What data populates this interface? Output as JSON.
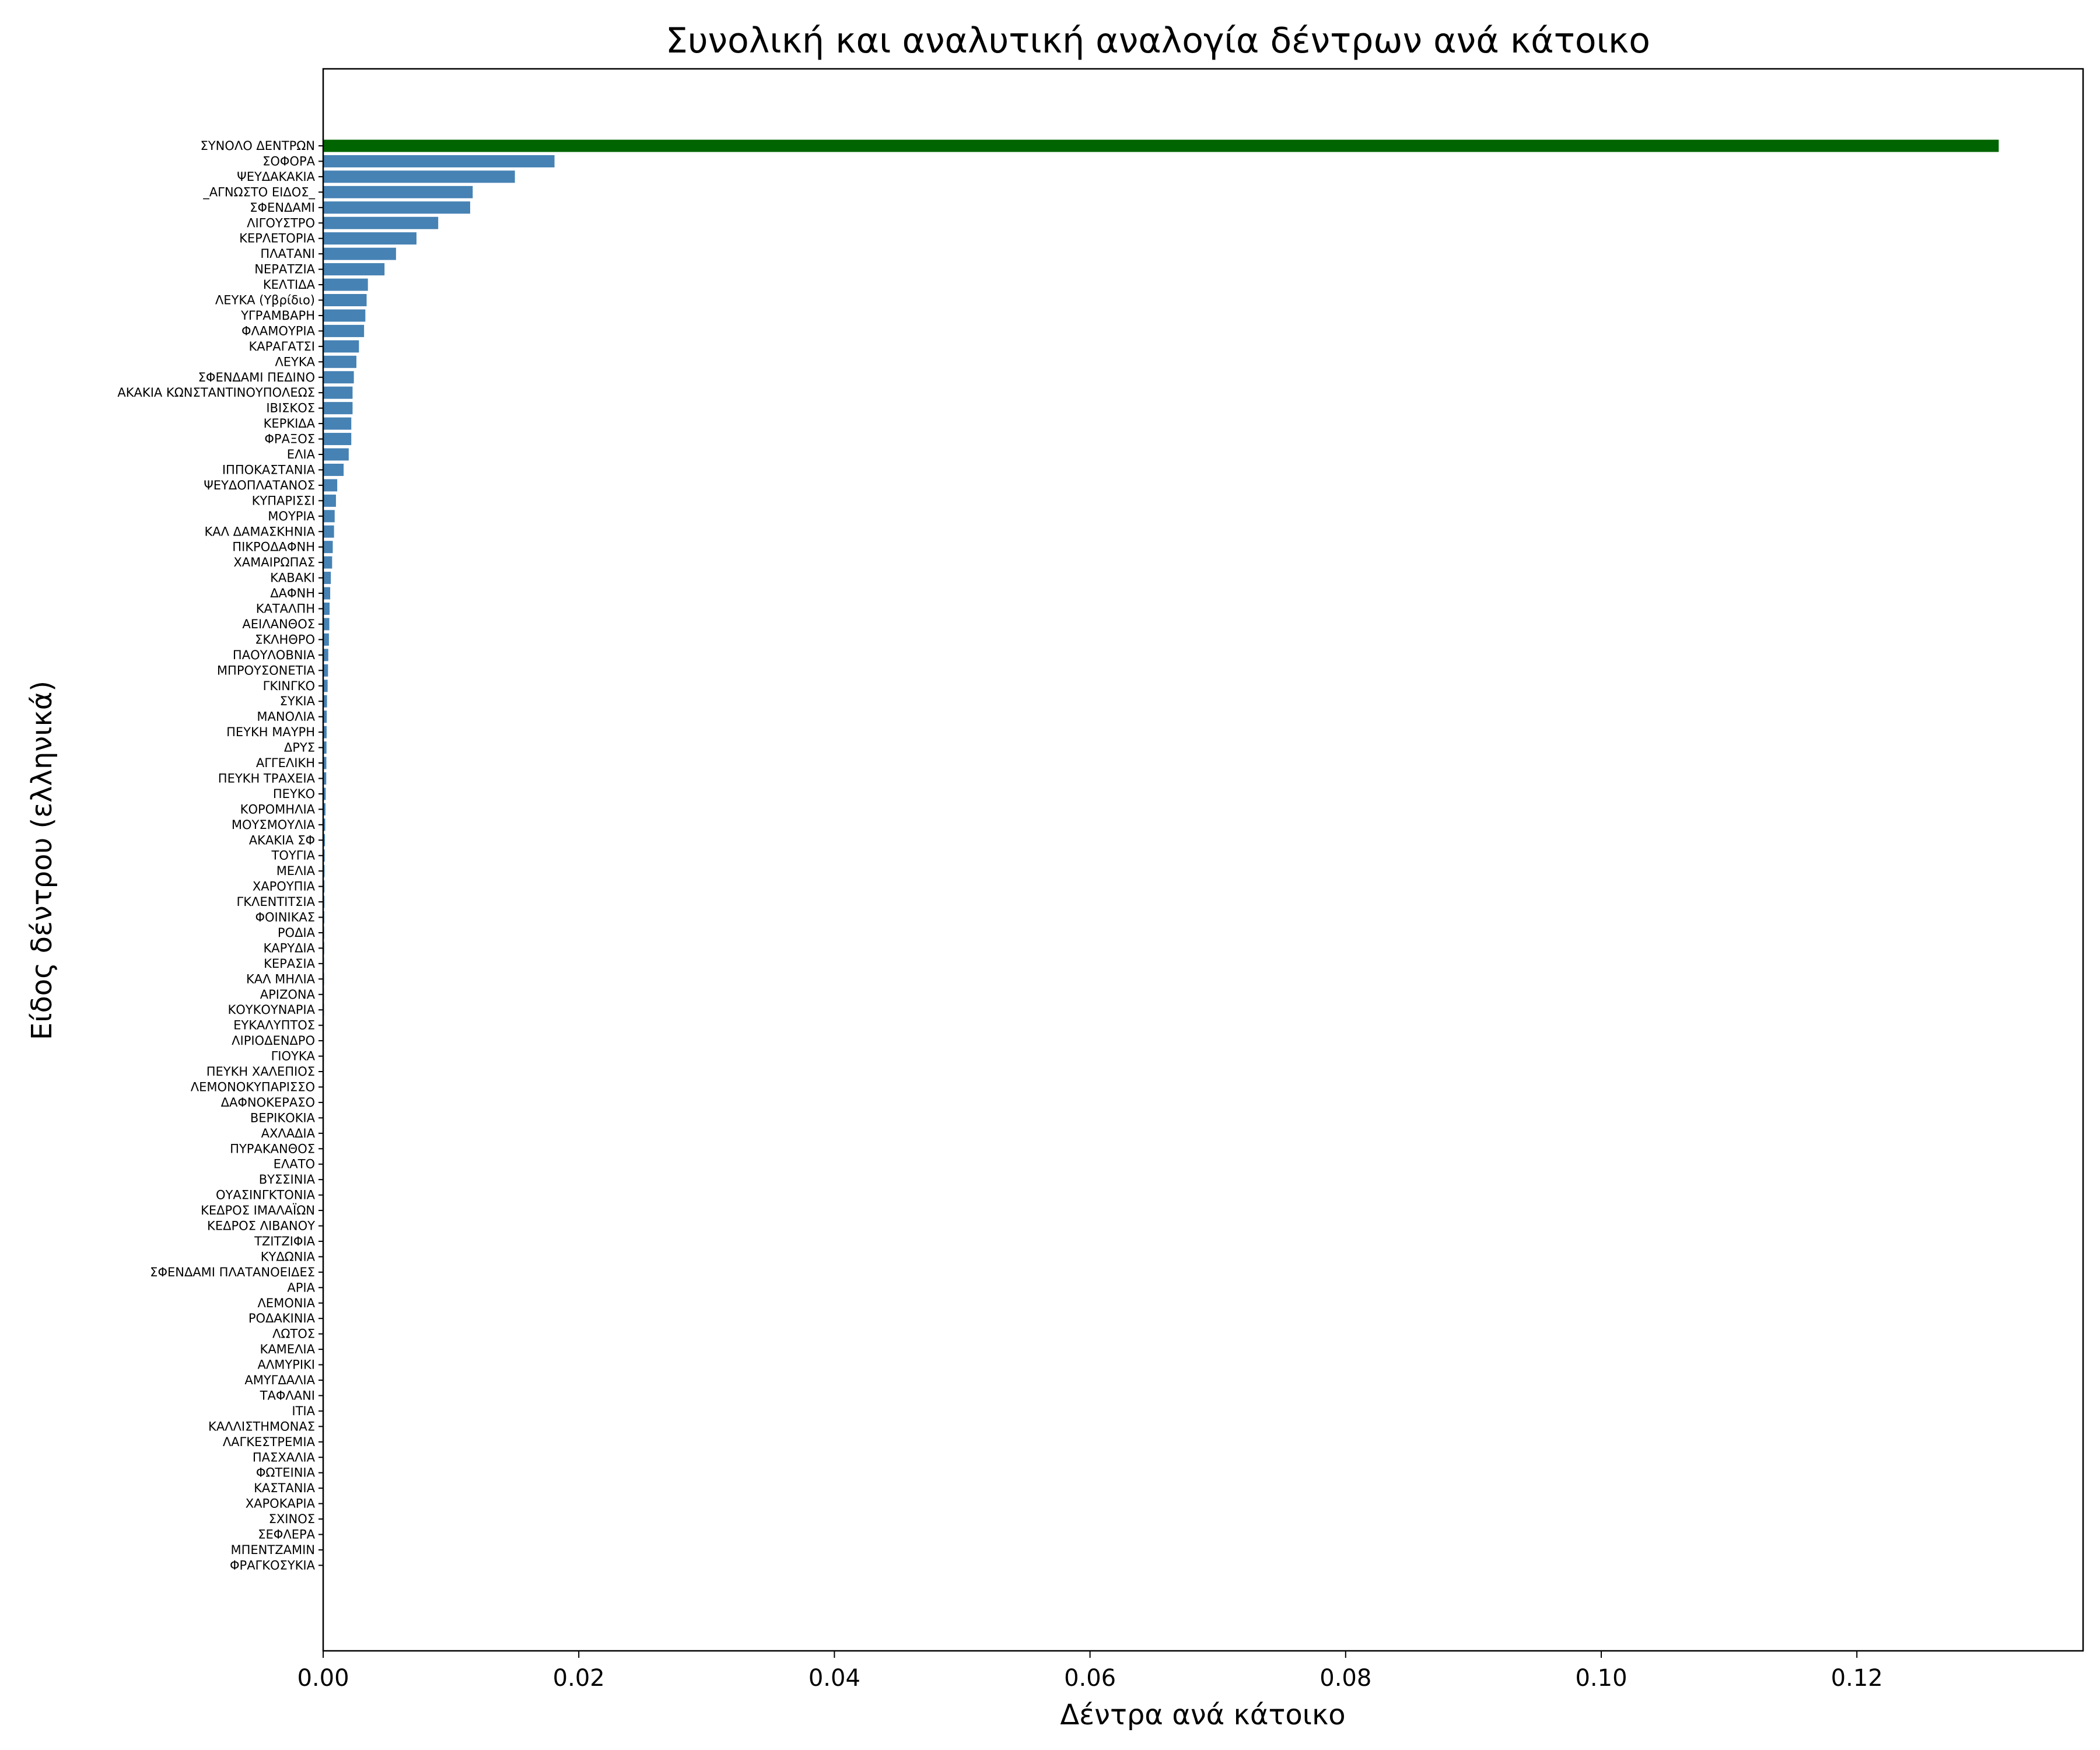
{
  "chart_data": {
    "type": "bar",
    "orientation": "horizontal",
    "title": "Συνολική και αναλυτική αναλογία δέντρων ανά κάτοικο",
    "xlabel": "Δέντρα ανά κάτοικο",
    "ylabel": "Είδος δέντρου (ελληνικά)",
    "xlim": [
      0,
      0.1377
    ],
    "xticks": [
      {
        "value": 0.0,
        "label": "0.00"
      },
      {
        "value": 0.02,
        "label": "0.02"
      },
      {
        "value": 0.04,
        "label": "0.04"
      },
      {
        "value": 0.06,
        "label": "0.06"
      },
      {
        "value": 0.08,
        "label": "0.08"
      },
      {
        "value": 0.1,
        "label": "0.10"
      },
      {
        "value": 0.12,
        "label": "0.12"
      }
    ],
    "grid": false,
    "colors": {
      "total": "#006400",
      "species": "#4682b4"
    },
    "categories": [
      "ΣΥΝΟΛΟ ΔΕΝΤΡΩΝ",
      "ΣΟΦΟΡΑ",
      "ΨΕΥΔΑΚΑΚΙΑ",
      "_ΑΓΝΩΣΤΟ ΕΙΔΟΣ_",
      "ΣΦΕΝΔΑΜΙ",
      "ΛΙΓΟΥΣΤΡΟ",
      "ΚΕΡΛΕΤΟΡΙΑ",
      "ΠΛΑΤΑΝΙ",
      "ΝΕΡΑΤΖΙΑ",
      "ΚΕΛΤΙΔΑ",
      "ΛΕΥΚΑ (Υβρίδιο)",
      "ΥΓΡΑΜΒΑΡΗ",
      "ΦΛΑΜΟΥΡΙΑ",
      "ΚΑΡΑΓΑΤΣΙ",
      "ΛΕΥΚΑ",
      "ΣΦΕΝΔΑΜΙ ΠΕΔΙΝΟ",
      "ΑΚΑΚΙΑ ΚΩΝΣΤΑΝΤΙΝΟΥΠΟΛΕΩΣ",
      "ΙΒΙΣΚΟΣ",
      "ΚΕΡΚΙΔΑ",
      "ΦΡΑΞΟΣ",
      "ΕΛΙΑ",
      "ΙΠΠΟΚΑΣΤΑΝΙΑ",
      "ΨΕΥΔΟΠΛΑΤΑΝΟΣ",
      "ΚΥΠΑΡΙΣΣΙ",
      "ΜΟΥΡΙΑ",
      "ΚΑΛ ΔΑΜΑΣΚΗΝΙΑ",
      "ΠΙΚΡΟΔΑΦΝΗ",
      "ΧΑΜΑΙΡΩΠΑΣ",
      "ΚΑΒΑΚΙ",
      "ΔΑΦΝΗ",
      "ΚΑΤΑΛΠΗ",
      "ΑΕΙΛΑΝΘΟΣ",
      "ΣΚΛΗΘΡΟ",
      "ΠΑΟΥΛΟΒΝΙΑ",
      "ΜΠΡΟΥΣΟΝΕΤΙΑ",
      "ΓΚΙΝΓΚΟ",
      "ΣΥΚΙΑ",
      "ΜΑΝΟΛΙΑ",
      "ΠΕΥΚΗ ΜΑΥΡΗ",
      "ΔΡΥΣ",
      "ΑΓΓΕΛΙΚΗ",
      "ΠΕΥΚΗ ΤΡΑΧΕΙΑ",
      "ΠΕΥΚΟ",
      "ΚΟΡΟΜΗΛΙΑ",
      "ΜΟΥΣΜΟΥΛΙΑ",
      "ΑΚΑΚΙΑ ΣΦ",
      "ΤΟΥΓΙΑ",
      "ΜΕΛΙΑ",
      "ΧΑΡΟΥΠΙΑ",
      "ΓΚΛΕΝΤΙΤΣΙΑ",
      "ΦΟΙΝΙΚΑΣ",
      "ΡΟΔΙΑ",
      "ΚΑΡΥΔΙΑ",
      "ΚΕΡΑΣΙΑ",
      "ΚΑΛ ΜΗΛΙΑ",
      "ΑΡΙΖΟΝΑ",
      "ΚΟΥΚΟΥΝΑΡΙΑ",
      "ΕΥΚΑΛΥΠΤΟΣ",
      "ΛΙΡΙΟΔΕΝΔΡΟ",
      "ΓΙΟΥΚΑ",
      "ΠΕΥΚΗ ΧΑΛΕΠΙΟΣ",
      "ΛΕΜΟΝΟΚΥΠΑΡΙΣΣΟ",
      "ΔΑΦΝΟΚΕΡΑΣΟ",
      "ΒΕΡΙΚΟΚΙΑ",
      "ΑΧΛΑΔΙΑ",
      "ΠΥΡΑΚΑΝΘΟΣ",
      "ΕΛΑΤΟ",
      "ΒΥΣΣΙΝΙΑ",
      "ΟΥΑΣΙΝΓΚΤΟΝΙΑ",
      "ΚΕΔΡΟΣ ΙΜΑΛΑΪΩΝ",
      "ΚΕΔΡΟΣ ΛΙΒΑΝΟΥ",
      "ΤΖΙΤΖΙΦΙΑ",
      "ΚΥΔΩΝΙΑ",
      "ΣΦΕΝΔΑΜΙ ΠΛΑΤΑΝΟΕΙΔΕΣ",
      "ΑΡΙΑ",
      "ΛΕΜΟΝΙΑ",
      "ΡΟΔΑΚΙΝΙΑ",
      "ΛΩΤΟΣ",
      "ΚΑΜΕΛΙΑ",
      "ΑΛΜΥΡΙΚΙ",
      "ΑΜΥΓΔΑΛΙΑ",
      "ΤΑΦΛΑΝΙ",
      "ΙΤΙΑ",
      "ΚΑΛΛΙΣΤΗΜΟΝΑΣ",
      "ΛΑΓΚΕΣΤΡΕΜΙΑ",
      "ΠΑΣΧΑΛΙΑ",
      "ΦΩΤΕΙΝΙΑ",
      "ΚΑΣΤΑΝΙΑ",
      "ΧΑΡΟΚΑΡΙΑ",
      "ΣΧΙΝΟΣ",
      "ΣΕΦΛΕΡΑ",
      "ΜΠΕΝΤΖΑΜΙΝ",
      "ΦΡΑΓΚΟΣΥΚΙΑ"
    ],
    "values": [
      0.1311,
      0.0181,
      0.015,
      0.0117,
      0.0115,
      0.009,
      0.0073,
      0.0057,
      0.0048,
      0.0035,
      0.0034,
      0.0033,
      0.0032,
      0.0028,
      0.0026,
      0.0024,
      0.0023,
      0.0023,
      0.0022,
      0.0022,
      0.002,
      0.0016,
      0.0011,
      0.001,
      0.0009,
      0.00085,
      0.00075,
      0.0007,
      0.0006,
      0.00055,
      0.0005,
      0.00048,
      0.00045,
      0.0004,
      0.00038,
      0.00035,
      0.0003,
      0.00028,
      0.00027,
      0.00026,
      0.00025,
      0.00024,
      0.0002,
      0.00018,
      0.00016,
      0.00014,
      0.00012,
      0.00011,
      0.0001,
      0.0001,
      9e-05,
      8e-05,
      8e-05,
      7e-05,
      7e-05,
      6e-05,
      6e-05,
      5e-05,
      5e-05,
      5e-05,
      4e-05,
      4e-05,
      4e-05,
      3e-05,
      3e-05,
      3e-05,
      3e-05,
      2e-05,
      2e-05,
      2e-05,
      2e-05,
      2e-05,
      2e-05,
      2e-05,
      1e-05,
      1e-05,
      1e-05,
      1e-05,
      1e-05,
      1e-05,
      1e-05,
      1e-05,
      1e-05,
      1e-05,
      1e-05,
      1e-05,
      1e-05,
      1e-05,
      1e-05,
      1e-05,
      1e-05,
      1e-05,
      1e-05
    ],
    "highlight_index": 0
  }
}
